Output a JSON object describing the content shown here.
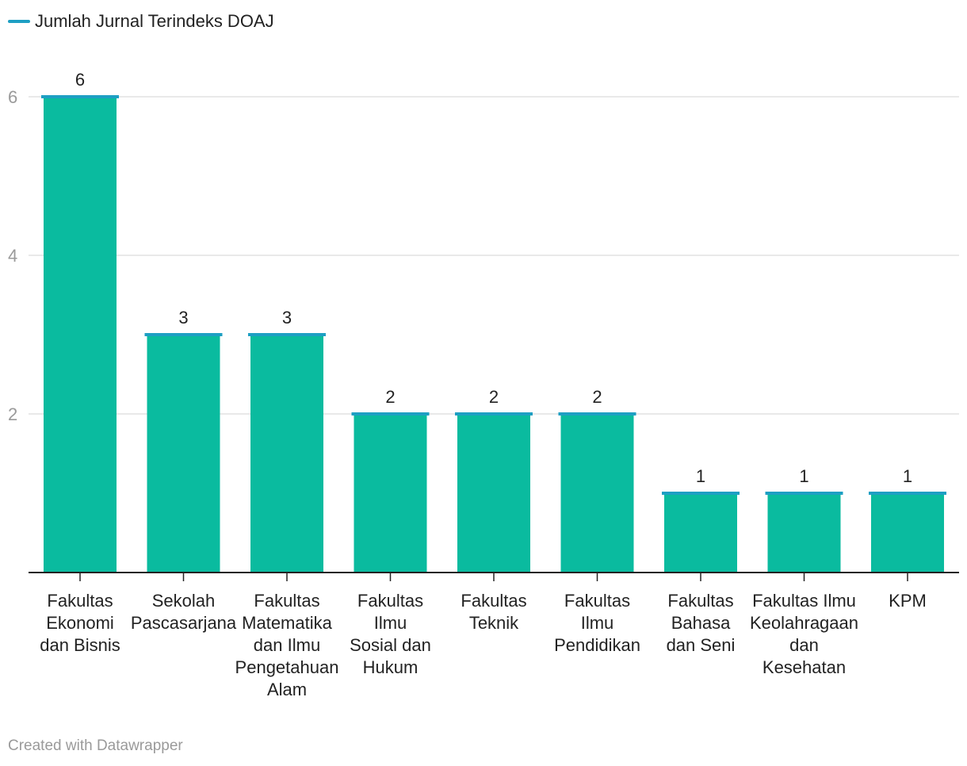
{
  "chart_data": {
    "type": "bar",
    "legend": "Jumlah Jurnal Terindeks DOAJ",
    "categories": [
      "Fakultas Ekonomi dan Bisnis",
      "Sekolah Pascasarjana",
      "Fakultas Matematika dan Ilmu Pengetahuan Alam",
      "Fakultas Ilmu Sosial dan Hukum",
      "Fakultas Teknik",
      "Fakultas Ilmu Pendidikan",
      "Fakultas Bahasa dan Seni",
      "Fakultas Ilmu Keolahragaan dan Kesehatan",
      "KPM"
    ],
    "category_lines": [
      [
        "Fakultas",
        "Ekonomi",
        "dan Bisnis"
      ],
      [
        "Sekolah",
        "Pascasarjana"
      ],
      [
        "Fakultas",
        "Matematika",
        "dan Ilmu",
        "Pengetahuan",
        "Alam"
      ],
      [
        "Fakultas",
        "Ilmu",
        "Sosial dan",
        "Hukum"
      ],
      [
        "Fakultas",
        "Teknik"
      ],
      [
        "Fakultas",
        "Ilmu",
        "Pendidikan"
      ],
      [
        "Fakultas",
        "Bahasa",
        "dan Seni"
      ],
      [
        "Fakultas Ilmu",
        "Keolahragaan",
        "dan",
        "Kesehatan"
      ],
      [
        "KPM"
      ]
    ],
    "values": [
      6,
      3,
      3,
      2,
      2,
      2,
      1,
      1,
      1
    ],
    "ylim": [
      0,
      6
    ],
    "yticks": [
      2,
      4,
      6
    ],
    "grid": true,
    "legend_position": "top-left",
    "colors": {
      "bar": "#0abb9f",
      "cap": "#1e9fc3",
      "grid": "#e2e2e2",
      "axis": "#222222",
      "tick_text": "#9a9a9a"
    }
  },
  "footer": "Created with Datawrapper"
}
